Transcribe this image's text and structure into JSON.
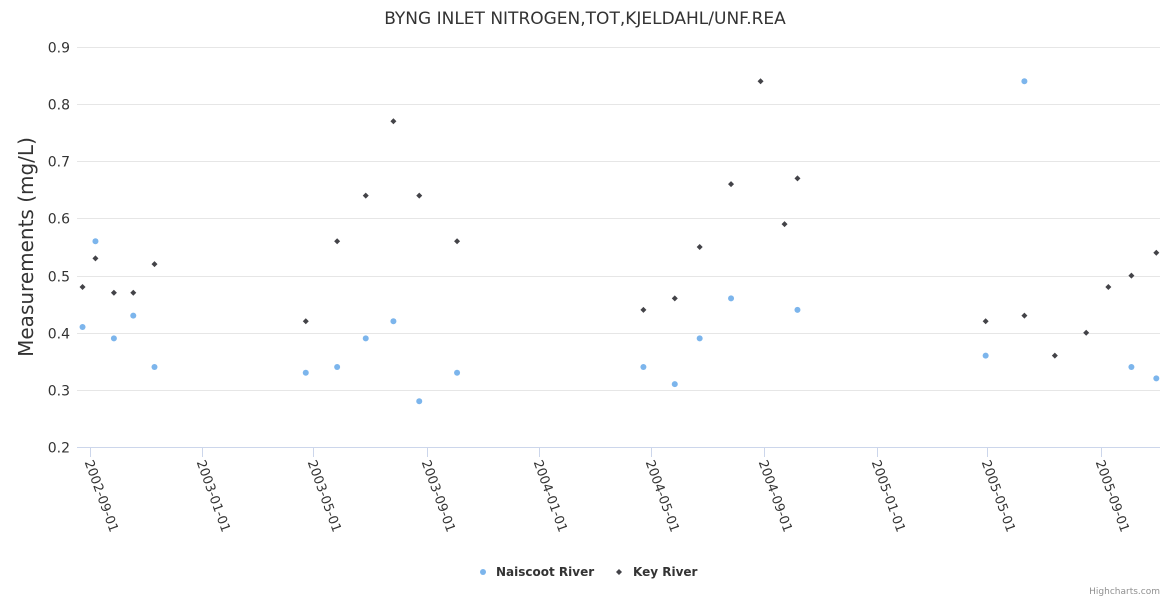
{
  "chart_data": {
    "type": "scatter",
    "title": "BYNG INLET NITROGEN,TOT,KJELDAHL/UNF.REA",
    "ylabel": "Measurements (mg/L)",
    "xlabel": "",
    "ylim": [
      0.2,
      0.9
    ],
    "yticks": [
      "0.9",
      "0.8",
      "0.7",
      "0.6",
      "0.5",
      "0.4",
      "0.3",
      "0.2"
    ],
    "xlim": [
      "2002-08-18",
      "2005-11-04"
    ],
    "xticks": [
      "2002-09-01",
      "2003-01-01",
      "2003-05-01",
      "2003-09-01",
      "2004-01-01",
      "2004-05-01",
      "2004-09-01",
      "2005-01-01",
      "2005-05-01",
      "2005-09-01"
    ],
    "grid": true,
    "legend_position": "bottom-center",
    "series": [
      {
        "name": "Naiscoot River",
        "color": "#7cb5ec",
        "marker": "circle",
        "points": [
          {
            "x": "2002-08-24",
            "y": 0.41
          },
          {
            "x": "2002-09-07",
            "y": 0.56
          },
          {
            "x": "2002-09-27",
            "y": 0.39
          },
          {
            "x": "2002-10-18",
            "y": 0.43
          },
          {
            "x": "2002-11-10",
            "y": 0.34
          },
          {
            "x": "2003-04-23",
            "y": 0.33
          },
          {
            "x": "2003-05-27",
            "y": 0.34
          },
          {
            "x": "2003-06-27",
            "y": 0.39
          },
          {
            "x": "2003-07-27",
            "y": 0.42
          },
          {
            "x": "2003-08-24",
            "y": 0.28
          },
          {
            "x": "2003-10-04",
            "y": 0.33
          },
          {
            "x": "2004-04-23",
            "y": 0.34
          },
          {
            "x": "2004-05-27",
            "y": 0.31
          },
          {
            "x": "2004-06-23",
            "y": 0.39
          },
          {
            "x": "2004-07-27",
            "y": 0.46
          },
          {
            "x": "2004-10-07",
            "y": 0.44
          },
          {
            "x": "2005-04-29",
            "y": 0.36
          },
          {
            "x": "2005-06-10",
            "y": 0.84
          },
          {
            "x": "2005-10-04",
            "y": 0.34
          },
          {
            "x": "2005-10-31",
            "y": 0.32
          }
        ]
      },
      {
        "name": "Key River",
        "color": "#434348",
        "marker": "diamond",
        "points": [
          {
            "x": "2002-08-24",
            "y": 0.48
          },
          {
            "x": "2002-09-07",
            "y": 0.53
          },
          {
            "x": "2002-09-27",
            "y": 0.47
          },
          {
            "x": "2002-10-18",
            "y": 0.47
          },
          {
            "x": "2002-11-10",
            "y": 0.52
          },
          {
            "x": "2003-04-23",
            "y": 0.42
          },
          {
            "x": "2003-05-27",
            "y": 0.56
          },
          {
            "x": "2003-06-27",
            "y": 0.64
          },
          {
            "x": "2003-07-27",
            "y": 0.77
          },
          {
            "x": "2003-08-24",
            "y": 0.64
          },
          {
            "x": "2003-10-04",
            "y": 0.56
          },
          {
            "x": "2004-04-23",
            "y": 0.44
          },
          {
            "x": "2004-05-27",
            "y": 0.46
          },
          {
            "x": "2004-06-23",
            "y": 0.55
          },
          {
            "x": "2004-07-27",
            "y": 0.66
          },
          {
            "x": "2004-08-28",
            "y": 0.84
          },
          {
            "x": "2004-09-23",
            "y": 0.59
          },
          {
            "x": "2004-10-07",
            "y": 0.67
          },
          {
            "x": "2005-04-29",
            "y": 0.42
          },
          {
            "x": "2005-06-10",
            "y": 0.43
          },
          {
            "x": "2005-07-13",
            "y": 0.36
          },
          {
            "x": "2005-08-16",
            "y": 0.4
          },
          {
            "x": "2005-09-09",
            "y": 0.48
          },
          {
            "x": "2005-10-04",
            "y": 0.5
          },
          {
            "x": "2005-10-31",
            "y": 0.54
          }
        ]
      }
    ],
    "credits": "Highcharts.com"
  }
}
